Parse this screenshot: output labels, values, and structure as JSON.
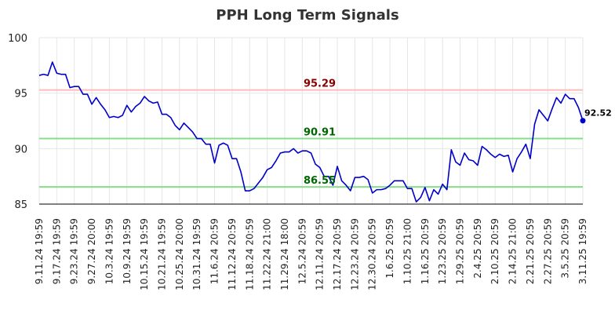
{
  "chart_data": {
    "type": "line",
    "title": "PPH Long Term Signals",
    "xlabel": "",
    "ylabel": "",
    "ylim": [
      85,
      100
    ],
    "yticks": [
      85,
      90,
      95,
      100
    ],
    "grid": true,
    "x_tick_labels": [
      "9.11.24 19:59",
      "9.17.24 19:59",
      "9.23.24 19:59",
      "9.27.24 20:00",
      "10.3.24 19:59",
      "10.9.24 19:59",
      "10.15.24 19:59",
      "10.21.24 19:59",
      "10.25.24 20:00",
      "10.31.24 19:59",
      "11.6.24 20:59",
      "11.12.24 20:59",
      "11.18.24 20:59",
      "11.22.24 21:00",
      "11.29.24 18:00",
      "12.5.24 20:59",
      "12.11.24 20:59",
      "12.17.24 20:59",
      "12.23.24 20:59",
      "12.30.24 20:59",
      "1.6.25 20:59",
      "1.10.25 21:00",
      "1.16.25 20:59",
      "1.23.25 20:59",
      "1.29.25 20:59",
      "2.4.25 20:59",
      "2.10.25 20:59",
      "2.14.25 21:00",
      "2.21.25 20:59",
      "2.27.25 20:59",
      "3.5.25 20:59",
      "3.11.25 19:59"
    ],
    "series": [
      {
        "name": "",
        "color": "#0000cc",
        "values": [
          96.6,
          96.7,
          96.6,
          97.8,
          96.8,
          96.7,
          96.7,
          95.5,
          95.6,
          95.6,
          94.9,
          94.9,
          94.0,
          94.6,
          94.0,
          93.5,
          92.8,
          92.9,
          92.8,
          93.0,
          93.9,
          93.3,
          93.8,
          94.1,
          94.7,
          94.3,
          94.1,
          94.2,
          93.1,
          93.1,
          92.8,
          92.1,
          91.7,
          92.3,
          91.9,
          91.5,
          90.9,
          90.9,
          90.4,
          90.4,
          88.7,
          90.3,
          90.5,
          90.3,
          89.1,
          89.1,
          87.9,
          86.2,
          86.2,
          86.4,
          86.9,
          87.4,
          88.1,
          88.3,
          88.9,
          89.6,
          89.7,
          89.7,
          90.0,
          89.6,
          89.8,
          89.8,
          89.6,
          88.6,
          88.3,
          87.5,
          87.5,
          86.7,
          88.4,
          87.1,
          86.7,
          86.2,
          87.4,
          87.4,
          87.5,
          87.2,
          86.0,
          86.3,
          86.3,
          86.4,
          86.7,
          87.1,
          87.1,
          87.1,
          86.4,
          86.4,
          85.2,
          85.6,
          86.5,
          85.3,
          86.3,
          85.9,
          86.8,
          86.3,
          89.9,
          88.8,
          88.5,
          89.6,
          89.0,
          88.9,
          88.5,
          90.2,
          89.9,
          89.5,
          89.2,
          89.5,
          89.3,
          89.4,
          87.9,
          89.1,
          89.7,
          90.4,
          89.1,
          92.2,
          93.5,
          93.0,
          92.5,
          93.6,
          94.6,
          94.1,
          94.9,
          94.5,
          94.5,
          93.7,
          92.52
        ]
      }
    ],
    "reference_lines": [
      {
        "value": 95.29,
        "label": "95.29",
        "line_color": "#ffbbbb",
        "label_color": "#880000"
      },
      {
        "value": 90.91,
        "label": "90.91",
        "line_color": "#88dd88",
        "label_color": "#006600"
      },
      {
        "value": 86.55,
        "label": "86.55",
        "line_color": "#88dd88",
        "label_color": "#006600"
      }
    ],
    "last_value_label": "92.52"
  }
}
